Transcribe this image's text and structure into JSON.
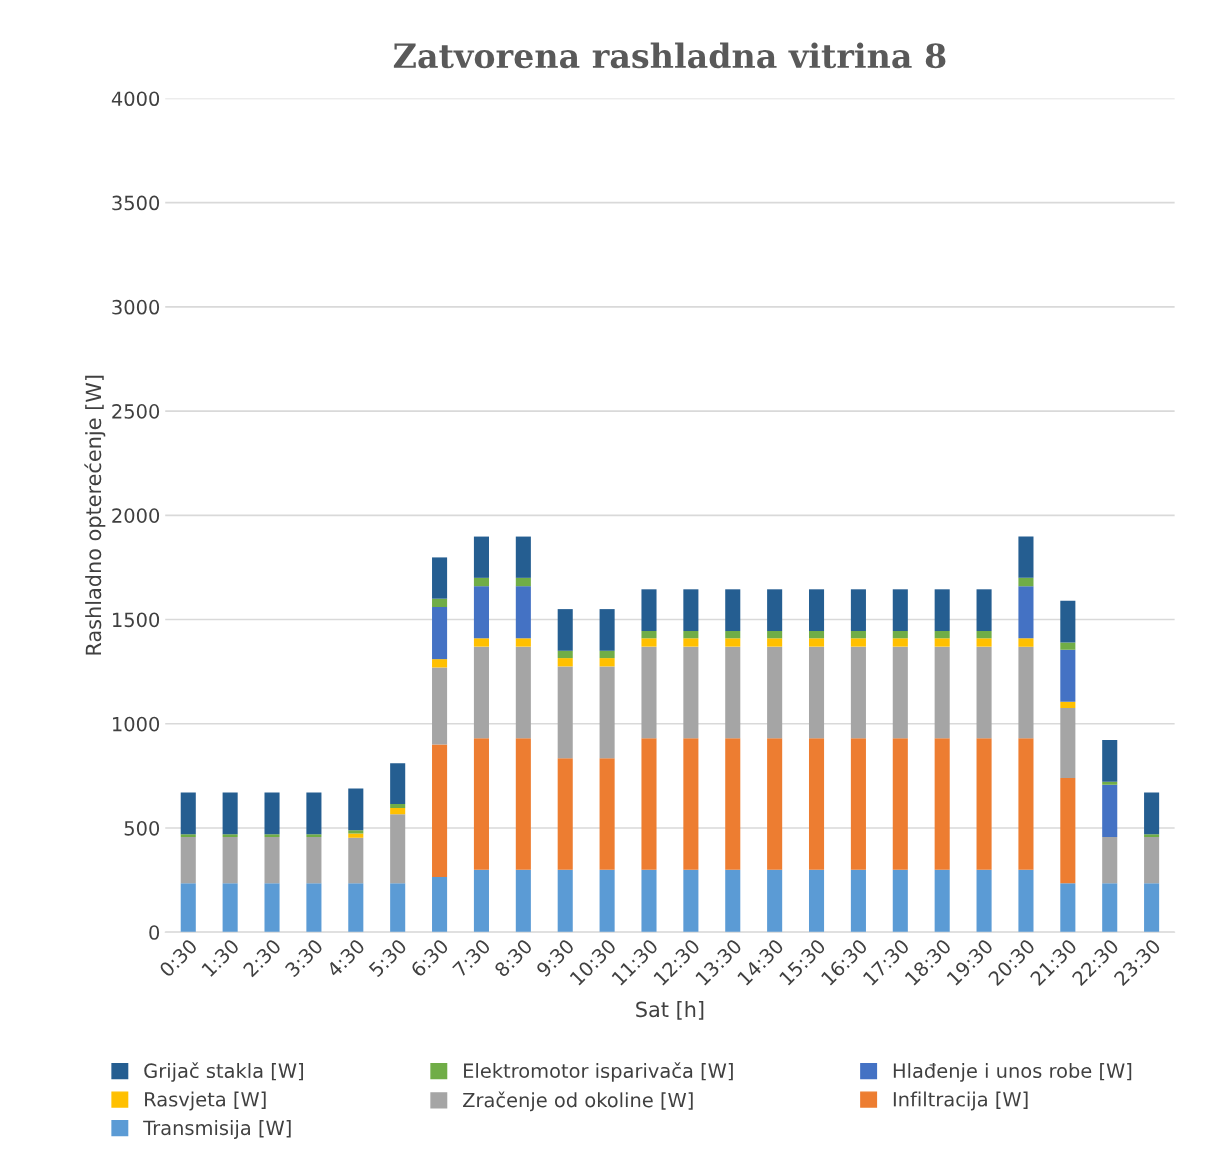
{
  "chart_data": {
    "type": "bar",
    "stacked": true,
    "title": "Zatvorena rashladna vitrina 8",
    "xlabel": "Sat [h]",
    "ylabel": "Rashladno opterećenje [W]",
    "categories": [
      "0:30",
      "1:30",
      "2:30",
      "3:30",
      "4:30",
      "5:30",
      "6:30",
      "7:30",
      "8:30",
      "9:30",
      "10:30",
      "11:30",
      "12:30",
      "13:30",
      "14:30",
      "15:30",
      "16:30",
      "17:30",
      "18:30",
      "19:30",
      "20:30",
      "21:30",
      "22:30",
      "23:30"
    ],
    "ylim": [
      0,
      4000
    ],
    "yticks": [
      0,
      500,
      1000,
      1500,
      2000,
      2500,
      3000,
      3500,
      4000
    ],
    "grid": "y",
    "legend": "bottom",
    "series": [
      {
        "name": "Transmisija [W]",
        "color": "#5b9bd5",
        "values": [
          235,
          235,
          235,
          235,
          235,
          235,
          265,
          300,
          300,
          300,
          300,
          300,
          300,
          300,
          300,
          300,
          300,
          300,
          300,
          300,
          300,
          235,
          235,
          235
        ]
      },
      {
        "name": "Infiltracija [W]",
        "color": "#ed7d31",
        "values": [
          0,
          0,
          0,
          0,
          0,
          0,
          635,
          630,
          630,
          535,
          535,
          630,
          630,
          630,
          630,
          630,
          630,
          630,
          630,
          630,
          630,
          505,
          0,
          0
        ]
      },
      {
        "name": "Zračenje od okoline [W]",
        "color": "#a5a5a5",
        "values": [
          222,
          222,
          222,
          222,
          218,
          331,
          370,
          440,
          440,
          440,
          440,
          440,
          440,
          440,
          440,
          440,
          440,
          440,
          440,
          440,
          440,
          335,
          222,
          222
        ]
      },
      {
        "name": "Rasvjeta [W]",
        "color": "#ffc000",
        "values": [
          0,
          0,
          0,
          0,
          21,
          30,
          40,
          40,
          40,
          40,
          40,
          40,
          40,
          40,
          40,
          40,
          40,
          40,
          40,
          40,
          40,
          30,
          0,
          0
        ]
      },
      {
        "name": "Hlađenje i unos robe [W]",
        "color": "#4472c4",
        "values": [
          0,
          0,
          0,
          0,
          0,
          0,
          250,
          250,
          250,
          0,
          0,
          0,
          0,
          0,
          0,
          0,
          0,
          0,
          0,
          0,
          250,
          250,
          250,
          0
        ]
      },
      {
        "name": "Elektromotor isparivača [W]",
        "color": "#70ad47",
        "values": [
          13,
          13,
          13,
          13,
          15,
          19,
          40,
          40,
          40,
          35,
          35,
          35,
          35,
          35,
          35,
          35,
          35,
          35,
          35,
          35,
          40,
          35,
          15,
          13
        ]
      },
      {
        "name": "Grijač stakla [W]",
        "color": "#255e91",
        "values": [
          200,
          200,
          200,
          200,
          200,
          196,
          198,
          198,
          198,
          200,
          200,
          200,
          200,
          200,
          200,
          200,
          200,
          200,
          200,
          200,
          198,
          200,
          200,
          200
        ]
      }
    ]
  }
}
